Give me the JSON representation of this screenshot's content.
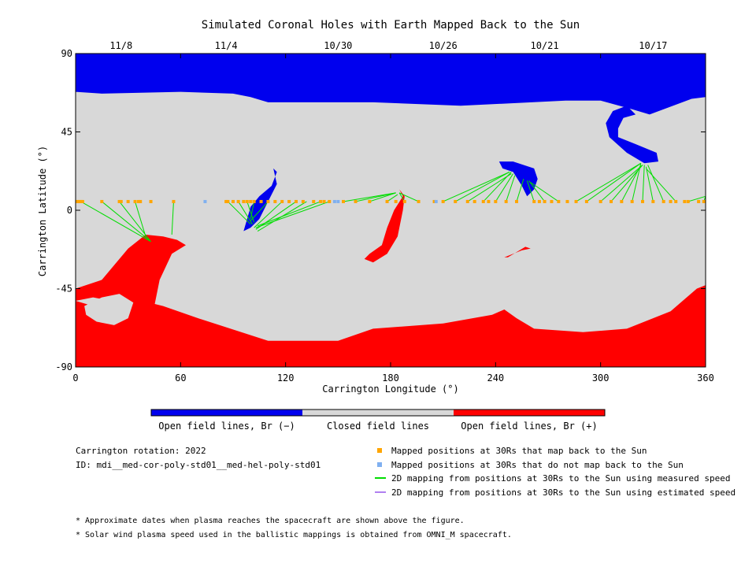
{
  "chart_data": {
    "type": "map",
    "title": "Simulated Coronal Holes with Earth Mapped Back to the Sun",
    "xlabel": "Carrington Longitude (°)",
    "ylabel": "Carrington Latitude (°)",
    "xlim": [
      0,
      360
    ],
    "ylim": [
      -90,
      90
    ],
    "xticks": [
      "0",
      "60",
      "120",
      "180",
      "240",
      "300",
      "360"
    ],
    "yticks": [
      "90",
      "45",
      "0",
      "-45",
      "-90"
    ],
    "top_dates": [
      {
        "label": "11/8",
        "lon": 26
      },
      {
        "label": "11/4",
        "lon": 86
      },
      {
        "label": "10/30",
        "lon": 150
      },
      {
        "label": "10/26",
        "lon": 210
      },
      {
        "label": "10/21",
        "lon": 268
      },
      {
        "label": "10/17",
        "lon": 330
      }
    ],
    "colors": {
      "open_negative": "#0000ee",
      "closed": "#d8d8d8",
      "open_positive": "#ff0000",
      "mapped_point": "#ffa500",
      "unmapped_point": "#80b0f0",
      "measured_line": "#00dd00",
      "estimated_line": "#b080f0"
    },
    "colorbar": {
      "labels": [
        "Open field lines, Br (−)",
        "Closed field lines",
        "Open field lines, Br (+)"
      ]
    },
    "regions": {
      "north_negative_polar": [
        [
          0,
          68
        ],
        [
          15,
          67
        ],
        [
          60,
          68
        ],
        [
          90,
          67
        ],
        [
          100,
          65
        ],
        [
          110,
          62
        ],
        [
          170,
          62
        ],
        [
          220,
          60
        ],
        [
          280,
          63
        ],
        [
          300,
          63
        ],
        [
          318,
          58
        ],
        [
          328,
          55
        ],
        [
          352,
          64
        ],
        [
          360,
          65
        ],
        [
          360,
          90
        ],
        [
          0,
          90
        ]
      ],
      "north_negative_extension": [
        [
          315,
          60
        ],
        [
          320,
          55
        ],
        [
          313,
          53
        ],
        [
          310,
          47
        ],
        [
          310,
          42
        ],
        [
          320,
          38
        ],
        [
          332,
          33
        ],
        [
          333,
          28
        ],
        [
          325,
          27
        ],
        [
          315,
          33
        ],
        [
          305,
          42
        ],
        [
          303,
          50
        ],
        [
          307,
          57
        ]
      ],
      "negative_holes": [
        [
          [
            113,
            24
          ],
          [
            115,
            22
          ],
          [
            112,
            14
          ],
          [
            105,
            8
          ],
          [
            100,
            2
          ],
          [
            98,
            -5
          ],
          [
            96,
            -12
          ],
          [
            100,
            -10
          ],
          [
            105,
            -5
          ],
          [
            110,
            5
          ],
          [
            115,
            15
          ]
        ],
        [
          [
            242,
            28
          ],
          [
            250,
            28
          ],
          [
            262,
            24
          ],
          [
            264,
            18
          ],
          [
            262,
            12
          ],
          [
            258,
            8
          ],
          [
            255,
            14
          ],
          [
            250,
            22
          ],
          [
            244,
            24
          ]
        ]
      ],
      "south_positive_polar": [
        [
          0,
          -52
        ],
        [
          10,
          -55
        ],
        [
          30,
          -50
        ],
        [
          50,
          -55
        ],
        [
          70,
          -62
        ],
        [
          110,
          -75
        ],
        [
          150,
          -75
        ],
        [
          170,
          -68
        ],
        [
          210,
          -65
        ],
        [
          238,
          -60
        ],
        [
          245,
          -57
        ],
        [
          252,
          -62
        ],
        [
          262,
          -68
        ],
        [
          290,
          -70
        ],
        [
          315,
          -68
        ],
        [
          340,
          -58
        ],
        [
          355,
          -45
        ],
        [
          360,
          -43
        ],
        [
          360,
          -90
        ],
        [
          0,
          -90
        ]
      ],
      "south_positive_extension": [
        [
          0,
          -45
        ],
        [
          15,
          -40
        ],
        [
          30,
          -22
        ],
        [
          40,
          -14
        ],
        [
          50,
          -15
        ],
        [
          58,
          -17
        ],
        [
          63,
          -20
        ],
        [
          55,
          -25
        ],
        [
          48,
          -40
        ],
        [
          45,
          -55
        ],
        [
          40,
          -60
        ],
        [
          30,
          -58
        ],
        [
          20,
          -52
        ],
        [
          10,
          -50
        ],
        [
          0,
          -52
        ]
      ],
      "positive_holes": [
        [
          [
            185,
            12
          ],
          [
            187,
            8
          ],
          [
            182,
            0
          ],
          [
            178,
            -10
          ],
          [
            175,
            -20
          ],
          [
            168,
            -25
          ],
          [
            165,
            -28
          ],
          [
            170,
            -30
          ],
          [
            178,
            -25
          ],
          [
            184,
            -15
          ],
          [
            187,
            0
          ],
          [
            188,
            8
          ]
        ],
        [
          [
            245,
            -27
          ],
          [
            255,
            -23
          ],
          [
            260,
            -22
          ],
          [
            257,
            -21
          ],
          [
            252,
            -24
          ],
          [
            247,
            -27
          ]
        ]
      ],
      "closed_islands": [
        [
          [
            5,
            -55
          ],
          [
            15,
            -50
          ],
          [
            25,
            -48
          ],
          [
            33,
            -53
          ],
          [
            30,
            -62
          ],
          [
            22,
            -66
          ],
          [
            12,
            -64
          ],
          [
            6,
            -60
          ]
        ]
      ]
    },
    "mapped_points": {
      "lat": 5,
      "mapped_lon": [
        1,
        2,
        3,
        4,
        15,
        25,
        26,
        30,
        34,
        36,
        37,
        43,
        56,
        86,
        87,
        90,
        93,
        96,
        98,
        100,
        102,
        106,
        110,
        114,
        118,
        122,
        126,
        130,
        136,
        140,
        142,
        145,
        153,
        160,
        168,
        178,
        183,
        188,
        196,
        205,
        210,
        217,
        224,
        228,
        233,
        236,
        240,
        246,
        252,
        262,
        265,
        268,
        272,
        276,
        281,
        286,
        292,
        300,
        306,
        312,
        318,
        324,
        330,
        336,
        340,
        343,
        348,
        350,
        356,
        359
      ],
      "unmapped_lon": [
        74,
        148,
        150,
        206
      ]
    },
    "mappings": [
      {
        "from": 3,
        "to": [
          43,
          -18
        ]
      },
      {
        "from": 15,
        "to": [
          43,
          -18
        ]
      },
      {
        "from": 25,
        "to": [
          43,
          -18
        ]
      },
      {
        "from": 34,
        "to": [
          40,
          -15
        ]
      },
      {
        "from": 56,
        "to": [
          55,
          -14
        ]
      },
      {
        "from": 87,
        "to": [
          100,
          -8
        ]
      },
      {
        "from": 93,
        "to": [
          101,
          -8
        ]
      },
      {
        "from": 98,
        "to": [
          102,
          -7
        ]
      },
      {
        "from": 102,
        "to": [
          100,
          -5
        ]
      },
      {
        "from": 110,
        "to": [
          100,
          -6
        ]
      },
      {
        "from": 118,
        "to": [
          102,
          -10
        ]
      },
      {
        "from": 126,
        "to": [
          103,
          -11
        ]
      },
      {
        "from": 132,
        "to": [
          104,
          -12
        ]
      },
      {
        "from": 140,
        "to": [
          104,
          -9
        ]
      },
      {
        "from": 145,
        "to": [
          103,
          -10
        ]
      },
      {
        "from": 153,
        "to": [
          183,
          10
        ]
      },
      {
        "from": 160,
        "to": [
          183,
          10
        ]
      },
      {
        "from": 168,
        "to": [
          183,
          10
        ]
      },
      {
        "from": 178,
        "to": [
          184,
          9
        ]
      },
      {
        "from": 188,
        "to": [
          185,
          10
        ]
      },
      {
        "from": 196,
        "to": [
          185,
          10
        ]
      },
      {
        "from": 210,
        "to": [
          248,
          22
        ]
      },
      {
        "from": 217,
        "to": [
          248,
          22
        ]
      },
      {
        "from": 224,
        "to": [
          249,
          21
        ]
      },
      {
        "from": 233,
        "to": [
          249,
          22
        ]
      },
      {
        "from": 240,
        "to": [
          250,
          21
        ]
      },
      {
        "from": 246,
        "to": [
          251,
          20
        ]
      },
      {
        "from": 252,
        "to": [
          256,
          18
        ]
      },
      {
        "from": 262,
        "to": [
          258,
          17
        ]
      },
      {
        "from": 268,
        "to": [
          259,
          17
        ]
      },
      {
        "from": 276,
        "to": [
          260,
          16
        ]
      },
      {
        "from": 286,
        "to": [
          323,
          27
        ]
      },
      {
        "from": 292,
        "to": [
          323,
          27
        ]
      },
      {
        "from": 300,
        "to": [
          324,
          26
        ]
      },
      {
        "from": 306,
        "to": [
          324,
          26
        ]
      },
      {
        "from": 312,
        "to": [
          323,
          26
        ]
      },
      {
        "from": 318,
        "to": [
          323,
          27
        ]
      },
      {
        "from": 324,
        "to": [
          325,
          26
        ]
      },
      {
        "from": 330,
        "to": [
          326,
          25
        ]
      },
      {
        "from": 336,
        "to": [
          327,
          26
        ]
      },
      {
        "from": 343,
        "to": [
          326,
          24
        ]
      },
      {
        "from": 350,
        "to": [
          360,
          8
        ]
      },
      {
        "from": 359,
        "to": [
          360,
          8
        ]
      }
    ]
  },
  "info": {
    "rotation": "Carrington rotation: 2022",
    "id": "ID: mdi__med-cor-poly-std01__med-hel-poly-std01"
  },
  "legend": [
    {
      "kind": "square",
      "color": "#ffa500",
      "label": "Mapped positions at 30Rs that map back to the Sun"
    },
    {
      "kind": "square",
      "color": "#80b0f0",
      "label": "Mapped positions at 30Rs that do not map back to the Sun"
    },
    {
      "kind": "line",
      "color": "#00dd00",
      "label": "2D mapping from positions at 30Rs to the Sun using measured speed"
    },
    {
      "kind": "line",
      "color": "#b080f0",
      "label": "2D mapping from positions at 30Rs to the Sun using estimated speed"
    }
  ],
  "footnotes": [
    "* Approximate dates when plasma reaches the spacecraft are shown above the figure.",
    "* Solar wind plasma speed used in the ballistic mappings is obtained from OMNI_M spacecraft."
  ]
}
